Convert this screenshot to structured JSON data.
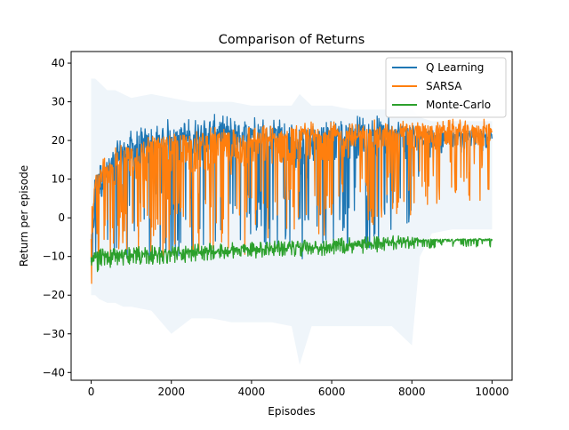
{
  "chart_data": {
    "type": "line",
    "title": "Comparison of Returns",
    "xlabel": "Episodes",
    "ylabel": "Return per episode",
    "xlim": [
      -500,
      10500
    ],
    "ylim": [
      -42,
      43
    ],
    "x_ticks": [
      0,
      2000,
      4000,
      6000,
      8000,
      10000
    ],
    "y_ticks": [
      -40,
      -30,
      -20,
      -10,
      0,
      10,
      20,
      30,
      40
    ],
    "grid": false,
    "legend_position": "top-right",
    "series": [
      {
        "name": "Q Learning",
        "color": "#1f77b4",
        "x": [
          0,
          100,
          200,
          400,
          600,
          800,
          1000,
          1500,
          2000,
          2500,
          3000,
          3500,
          4000,
          4500,
          5000,
          5200,
          5500,
          6000,
          6500,
          7000,
          7500,
          8000,
          8200,
          8500,
          9000,
          9500,
          10000
        ],
        "mean": [
          -10,
          6,
          9,
          11,
          14,
          16,
          17,
          18,
          20,
          20,
          21,
          21,
          21,
          21,
          19,
          12,
          18,
          20,
          21,
          21,
          21,
          20,
          20,
          21,
          21,
          21,
          21
        ],
        "lower": [
          -17,
          -16,
          -15,
          -14,
          -13,
          -13,
          -12,
          -12,
          -11,
          -10,
          -9,
          -8,
          -8,
          -8,
          -7,
          -12,
          -8,
          -8,
          -8,
          -8,
          -6,
          -6,
          14,
          16,
          17,
          17,
          17
        ],
        "upper": [
          5,
          12,
          14,
          15,
          17,
          20,
          21,
          22,
          23,
          23,
          24,
          24,
          24,
          24,
          24,
          23,
          24,
          24,
          24,
          24,
          24,
          24,
          22,
          23,
          23,
          23,
          23
        ],
        "band_upper": [
          36,
          36,
          35,
          33,
          33,
          32,
          31,
          32,
          31,
          30,
          30,
          30,
          29,
          29,
          29,
          32,
          29,
          29,
          28,
          28,
          28,
          28,
          26,
          25,
          25,
          25,
          25
        ],
        "band_lower": [
          -20,
          -20,
          -21,
          -22,
          -22,
          -23,
          -23,
          -24,
          -30,
          -26,
          -26,
          -27,
          -27,
          -27,
          -28,
          -38,
          -28,
          -28,
          -28,
          -28,
          -28,
          -33,
          -10,
          -4,
          -3,
          -3,
          -3
        ]
      },
      {
        "name": "SARSA",
        "color": "#ff7f0e",
        "x": [
          0,
          100,
          200,
          400,
          600,
          800,
          1000,
          1500,
          2000,
          2500,
          3000,
          3500,
          4000,
          4500,
          5000,
          5500,
          6000,
          6500,
          7000,
          7500,
          8000,
          8500,
          9000,
          9500,
          10000
        ],
        "mean": [
          -8,
          6,
          8,
          10,
          12,
          13,
          14,
          15,
          16,
          17,
          18,
          18,
          19,
          19,
          19,
          20,
          20,
          20,
          21,
          21,
          21,
          21,
          22,
          22,
          22
        ],
        "lower": [
          -18,
          -14,
          -12,
          -12,
          -11,
          -10,
          -10,
          -10,
          -10,
          -10,
          -9,
          -17,
          -8,
          -7,
          -7,
          -6,
          -5,
          -3,
          -2,
          -1,
          -1,
          3,
          4,
          4,
          4
        ],
        "upper": [
          2,
          12,
          15,
          17,
          18,
          20,
          20,
          21,
          21,
          22,
          22,
          22,
          22,
          22,
          23,
          23,
          23,
          23,
          23,
          23,
          24,
          24,
          24,
          24,
          24
        ]
      },
      {
        "name": "Monte-Carlo",
        "color": "#2ca02c",
        "x": [
          0,
          100,
          200,
          400,
          600,
          800,
          1000,
          1500,
          2000,
          2500,
          3000,
          3500,
          4000,
          4500,
          5000,
          5500,
          6000,
          6500,
          7000,
          7500,
          8000,
          8500,
          9000,
          9500,
          10000
        ],
        "mean": [
          -11,
          -10.5,
          -10.2,
          -10,
          -10,
          -9.8,
          -9.6,
          -9.4,
          -9.2,
          -9,
          -8.8,
          -8.6,
          -8.4,
          -8.2,
          -8,
          -7.8,
          -7.6,
          -7.3,
          -7,
          -6.5,
          -6,
          -6,
          -5.8,
          -5.7,
          -5.6
        ],
        "lower": [
          -17,
          -15,
          -14,
          -13,
          -13,
          -12.5,
          -12.5,
          -12,
          -12,
          -11.5,
          -11,
          -10.5,
          -10.5,
          -10,
          -10,
          -10,
          -9.5,
          -9.5,
          -9,
          -8.5,
          -8,
          -8,
          -7.5,
          -7.5,
          -7.5
        ],
        "upper": [
          -9,
          -8.5,
          -8,
          -8,
          -7.8,
          -7.6,
          -7.4,
          -7.2,
          -7,
          -6.8,
          -6.6,
          -6.4,
          -6.2,
          -6,
          -5.8,
          -5.6,
          -5.4,
          -5,
          -4.8,
          -4.5,
          -5,
          -5.5,
          -5.5,
          -5.5,
          -5.5
        ]
      }
    ]
  }
}
